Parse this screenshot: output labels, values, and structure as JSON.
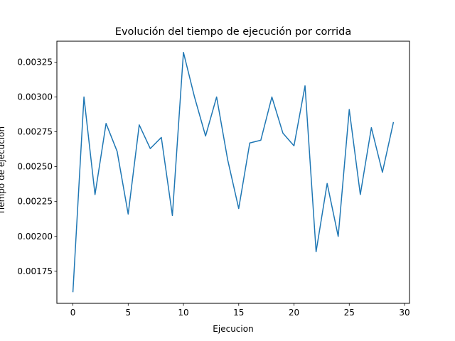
{
  "chart_data": {
    "type": "line",
    "title": "Evolución del tiempo de ejecución por corrida",
    "xlabel": "Ejecucion",
    "ylabel": "Tiempo de ejecución",
    "xlim": [
      -1.45,
      30.45
    ],
    "ylim": [
      0.00152,
      0.0034
    ],
    "xticks": [
      0,
      5,
      10,
      15,
      20,
      25,
      30
    ],
    "yticks": [
      0.00175,
      0.002,
      0.00225,
      0.0025,
      0.00275,
      0.003,
      0.00325
    ],
    "ytick_labels": [
      "0.00175",
      "0.00200",
      "0.00225",
      "0.00250",
      "0.00275",
      "0.00300",
      "0.00325"
    ],
    "grid": false,
    "line_color": "#1f77b4",
    "series": [
      {
        "x": [
          0,
          1,
          2,
          3,
          4,
          5,
          6,
          7,
          8,
          9,
          10,
          11,
          12,
          13,
          14,
          15,
          16,
          17,
          18,
          19,
          20,
          21,
          22,
          23,
          24,
          25,
          26,
          27,
          28,
          29
        ],
        "values": [
          0.0016,
          0.003,
          0.0023,
          0.00281,
          0.00261,
          0.00216,
          0.0028,
          0.00263,
          0.00271,
          0.00215,
          0.00332,
          0.003,
          0.00272,
          0.003,
          0.00255,
          0.0022,
          0.00267,
          0.00269,
          0.003,
          0.00274,
          0.00265,
          0.00308,
          0.00189,
          0.00238,
          0.002,
          0.00291,
          0.0023,
          0.00278,
          0.00246,
          0.00282
        ]
      }
    ]
  }
}
